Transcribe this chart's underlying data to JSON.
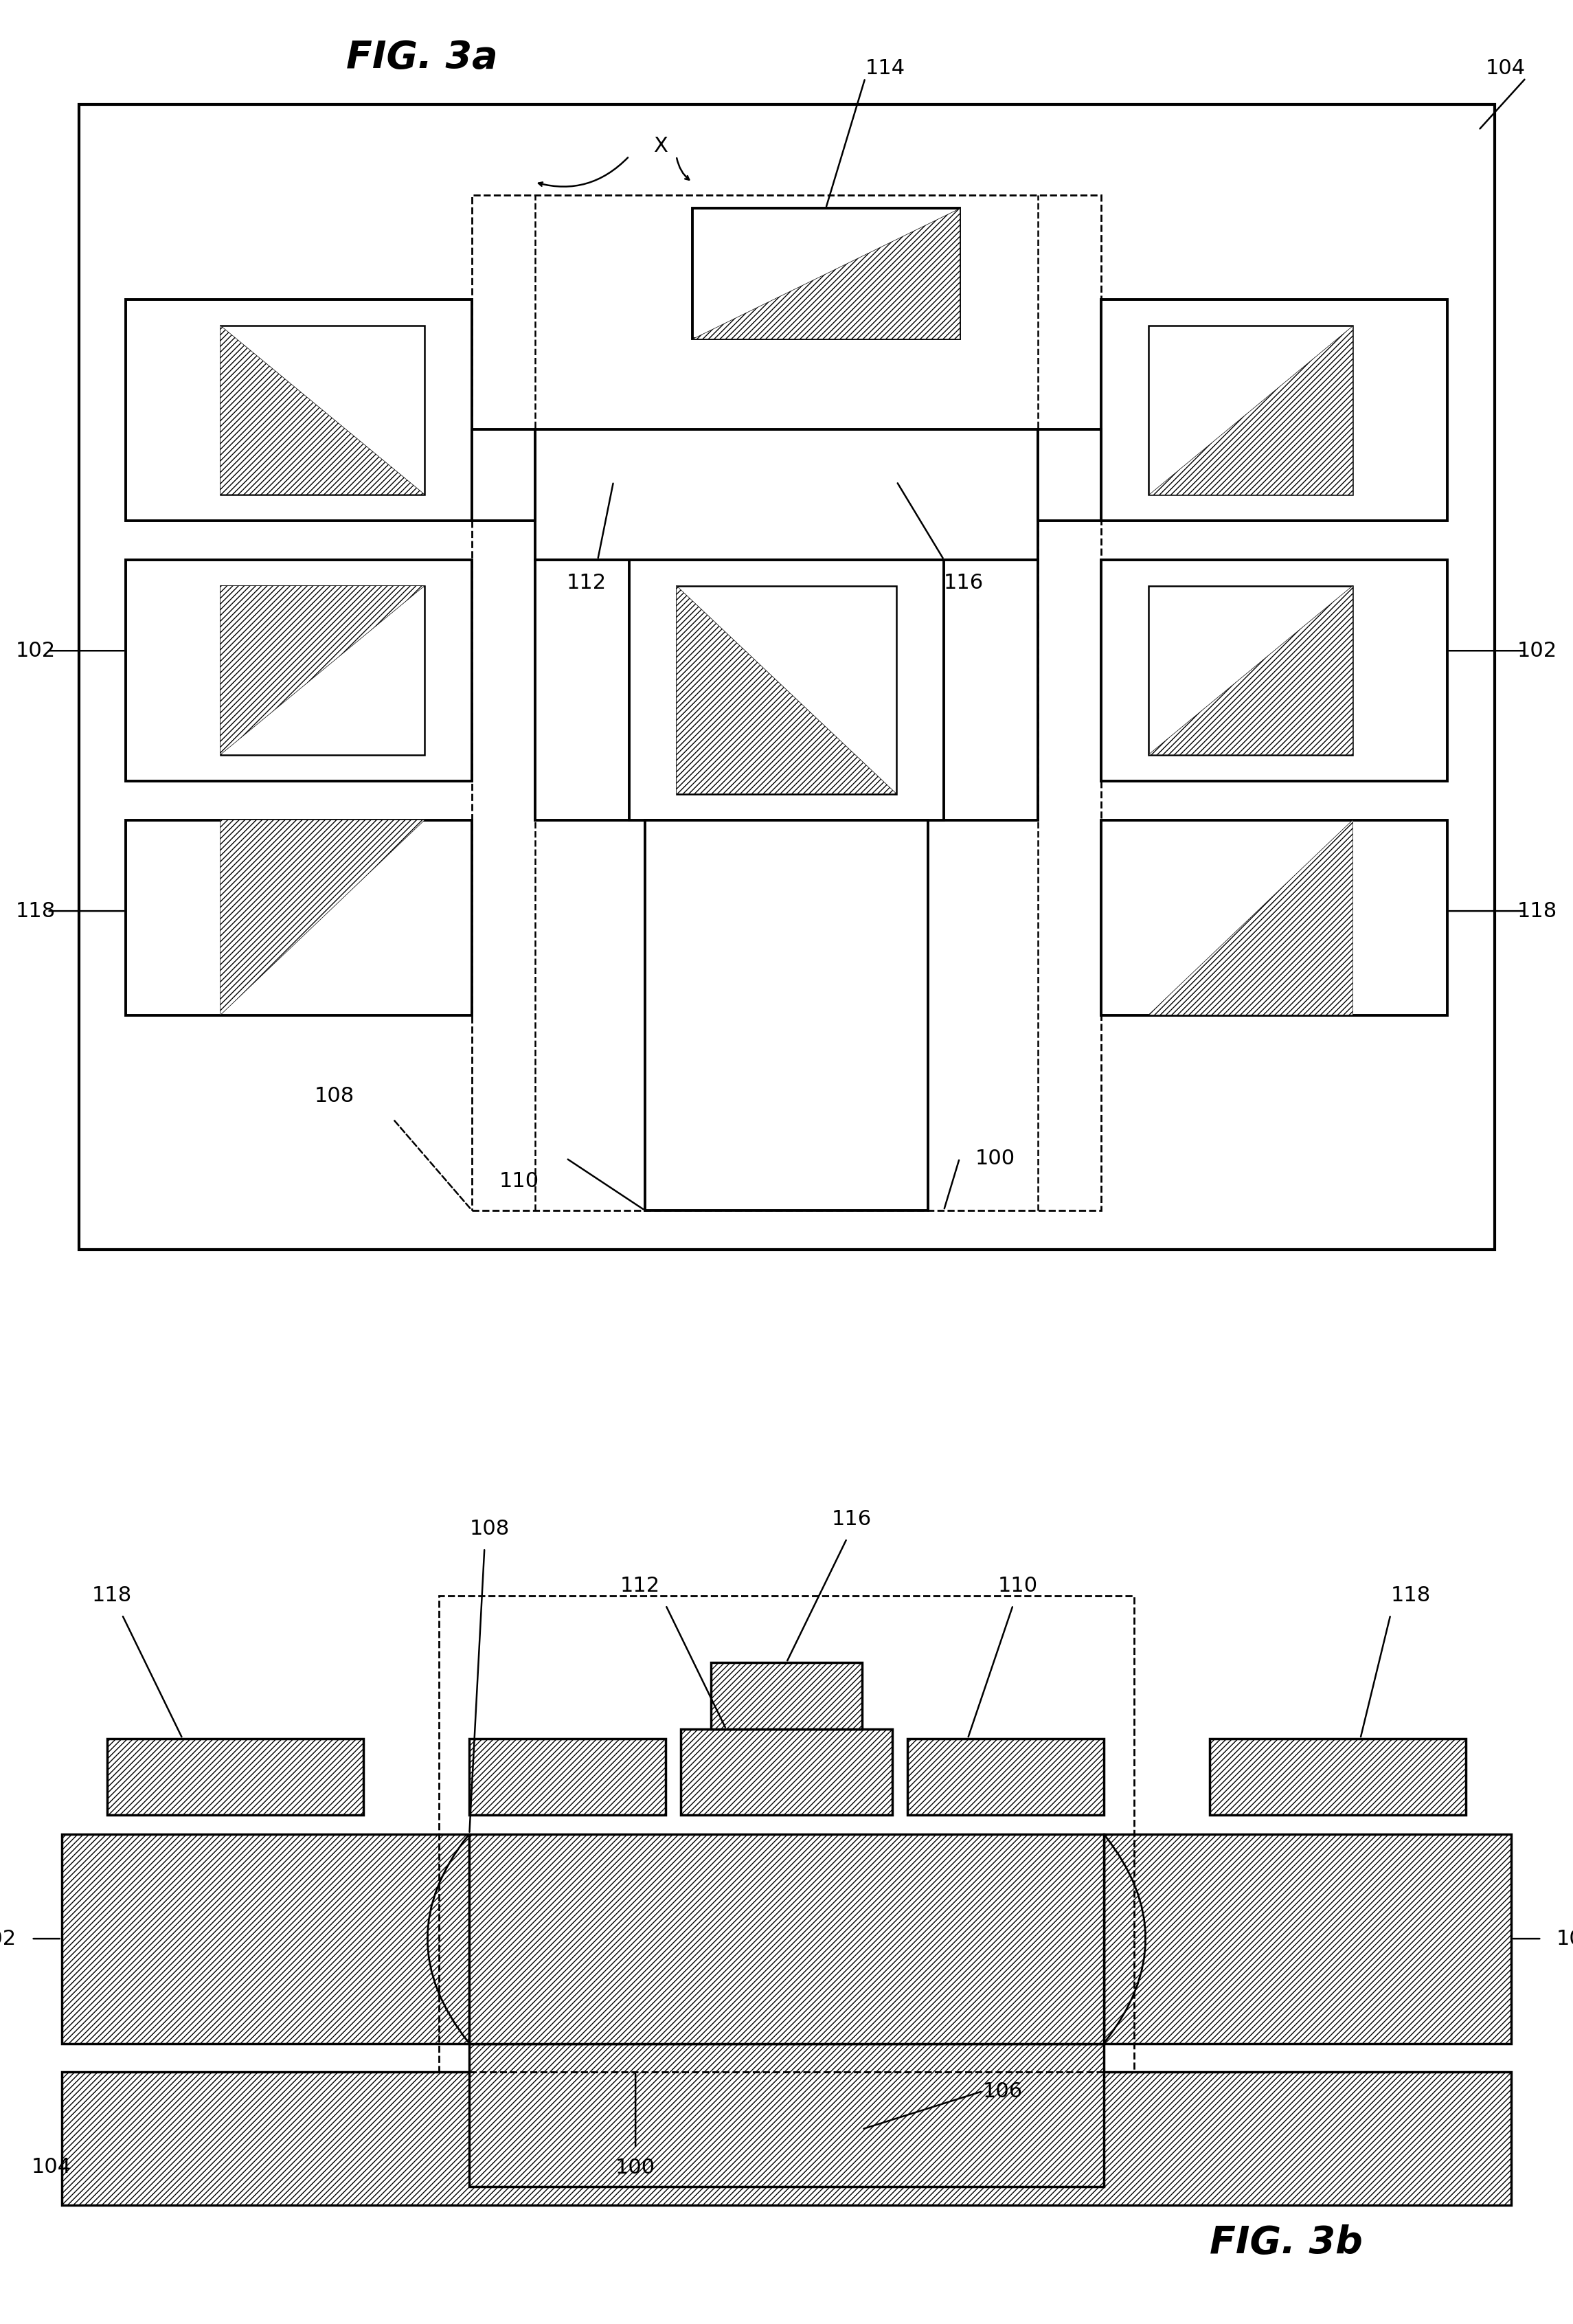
{
  "fig_width": 22.9,
  "fig_height": 33.83,
  "bg_color": "#ffffff",
  "title_3a": "FIG. 3a",
  "title_3b": "FIG. 3b",
  "lw_main": 2.8,
  "lw_thin": 1.8,
  "fs_label": 22,
  "fs_title": 40
}
